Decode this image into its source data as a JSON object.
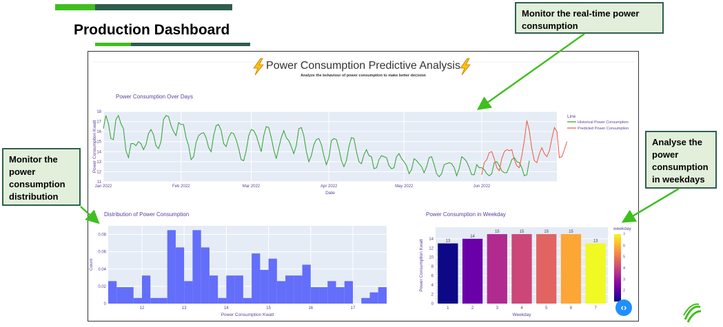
{
  "slide": {
    "title": "Production Dashboard",
    "callouts": {
      "realtime": "Monitor the real-time power consumption",
      "distribution": "Monitor the power consumption distribution",
      "weekdays": "Analyse the power consumption in weekdays"
    }
  },
  "dashboard": {
    "header_icon": "lightning-emoji-icon",
    "title": "Power Consumption Predictive Analysis",
    "subtitle": "Analyze the behaviour of power consumption to make better decision",
    "nav_icon": "chevron-left-right-icon"
  },
  "colors": {
    "historical": "#2ca02c",
    "predicted": "#ef553b",
    "histogram": "#636efa",
    "plot_bg": "#e5ecf6",
    "title_text": "#5a3e9a",
    "accent_dark": "#2e5e4e",
    "accent_green": "#3fbf1f"
  },
  "chart_data": [
    {
      "type": "line",
      "title": "Power Consumption Over Days",
      "xlabel": "Date",
      "ylabel": "Power Consumption Kwatt",
      "ylim": [
        11,
        18
      ],
      "yticks": [
        11,
        12,
        13,
        14,
        15,
        16,
        17,
        18
      ],
      "xticks": [
        "Jan 2022",
        "Feb 2022",
        "Mar 2022",
        "Apr 2022",
        "May 2022",
        "Jun 2022"
      ],
      "xlim": [
        "2022-01-01",
        "2022-07-01"
      ],
      "legend_title": "Line",
      "legend_position": "top-right",
      "series": [
        {
          "name": "Historical Power Consumption",
          "start": "2022-01-01",
          "step_days": 1,
          "values": [
            16.3,
            17.6,
            16.8,
            15.3,
            15.2,
            17.2,
            17.6,
            16.8,
            16.3,
            14.1,
            13.4,
            14.8,
            14.8,
            14.6,
            15.0,
            14.8,
            14.2,
            14.7,
            15.8,
            16.2,
            15.7,
            14.6,
            14.3,
            15.0,
            17.2,
            17.6,
            17.5,
            16.6,
            16.0,
            15.6,
            16.9,
            16.7,
            16.7,
            15.4,
            14.6,
            13.2,
            13.5,
            14.9,
            15.6,
            15.8,
            15.9,
            15.4,
            14.4,
            14.0,
            15.6,
            16.6,
            16.7,
            16.1,
            14.8,
            14.5,
            15.4,
            15.9,
            15.8,
            15.2,
            14.3,
            13.2,
            13.1,
            14.1,
            15.6,
            16.2,
            16.1,
            15.6,
            14.8,
            14.0,
            15.6,
            16.5,
            16.4,
            15.4,
            14.2,
            13.3,
            14.4,
            15.4,
            16.1,
            15.4,
            15.1,
            14.5,
            13.8,
            14.6,
            16.3,
            16.4,
            15.6,
            14.0,
            13.0,
            13.6,
            14.7,
            15.2,
            15.3,
            14.7,
            13.6,
            12.7,
            13.4,
            15.1,
            15.3,
            15.2,
            14.3,
            13.1,
            12.5,
            13.1,
            14.5,
            15.4,
            15.3,
            14.0,
            13.0,
            12.8,
            13.7,
            14.2,
            13.6,
            13.5,
            12.3,
            12.4,
            13.2,
            13.6,
            13.5,
            13.4,
            12.6,
            12.3,
            12.4,
            13.5,
            13.8,
            13.3,
            13.0,
            12.6,
            11.8,
            12.2,
            13.3,
            13.1,
            12.8,
            12.5,
            11.9,
            12.5,
            13.4,
            13.5,
            12.7,
            11.8,
            11.5,
            11.8,
            12.7,
            12.8,
            12.9,
            12.8,
            12.4,
            11.6,
            12.3,
            13.5,
            13.3,
            13.0,
            12.4,
            11.7,
            11.7,
            12.7,
            12.4,
            12.4,
            12.2,
            11.8,
            11.6,
            11.8,
            12.9,
            13.0,
            12.6,
            12.1,
            11.9,
            11.9,
            12.5,
            13.2,
            13.4,
            13.0,
            12.9,
            12.4,
            11.6,
            11.7,
            13.1
          ]
        },
        {
          "name": "Predicted Power Consumption",
          "start": "2022-06-01",
          "step_days": 1,
          "values": [
            11.7,
            12.9,
            13.2,
            13.9,
            14.0,
            13.3,
            12.4,
            12.1,
            13.3,
            14.0,
            14.2,
            14.1,
            14.2,
            13.2,
            12.6,
            12.4,
            13.6,
            15.1,
            17.1,
            16.1,
            14.3,
            13.1,
            12.9,
            13.8,
            14.4,
            13.8,
            13.5,
            14.1,
            15.3,
            16.4,
            16.0,
            13.4,
            13.5,
            14.2,
            15.0
          ]
        }
      ]
    },
    {
      "type": "bar",
      "subtype": "histogram",
      "title": "Distribution of Power Consumption",
      "xlabel": "Power Consumption Kwatt",
      "ylabel": "Count",
      "xlim": [
        11.2,
        17.8
      ],
      "xticks": [
        12,
        13,
        14,
        15,
        16,
        17
      ],
      "ylim": [
        0,
        0.09
      ],
      "yticks": [
        0,
        0.02,
        0.04,
        0.06,
        0.08
      ],
      "bin_start": 11.2,
      "bin_width": 0.2,
      "values": [
        0.026,
        0.019,
        0.019,
        0.0065,
        0.0325,
        0.0065,
        0.0065,
        0.085,
        0.065,
        0.026,
        0.085,
        0.065,
        0.0325,
        0.0065,
        0.0325,
        0.0325,
        0.0065,
        0.058,
        0.039,
        0.052,
        0.026,
        0.0325,
        0.0325,
        0.045,
        0.019,
        0.019,
        0.026,
        0.019,
        0.026,
        0.0,
        0.0065,
        0.013,
        0.019
      ]
    },
    {
      "type": "bar",
      "title": "Power Consumption in Weekday",
      "xlabel": "Weekday",
      "ylabel": "Power Consumption Kwatt",
      "ylim": [
        0,
        16.5
      ],
      "yticks": [
        0,
        2,
        4,
        6,
        8,
        10,
        12,
        14
      ],
      "categories": [
        "1",
        "2",
        "3",
        "4",
        "5",
        "6",
        "7"
      ],
      "values": [
        13,
        14,
        15,
        15,
        15,
        15,
        13
      ],
      "data_labels": [
        "13",
        "14",
        "15",
        "15",
        "15",
        "15",
        "13"
      ],
      "bar_colors": [
        "#0d0887",
        "#6a00a8",
        "#b12a90",
        "#cc4778",
        "#e16462",
        "#fca636",
        "#f0f921"
      ],
      "colorbar": {
        "title": "weekday",
        "ticks": [
          "2",
          "3",
          "4",
          "5",
          "6",
          "7"
        ],
        "colors": [
          "#0d0887",
          "#5302a3",
          "#8b0aa5",
          "#b83289",
          "#db5c68",
          "#f48849",
          "#febd2a",
          "#f0f921"
        ]
      }
    }
  ]
}
